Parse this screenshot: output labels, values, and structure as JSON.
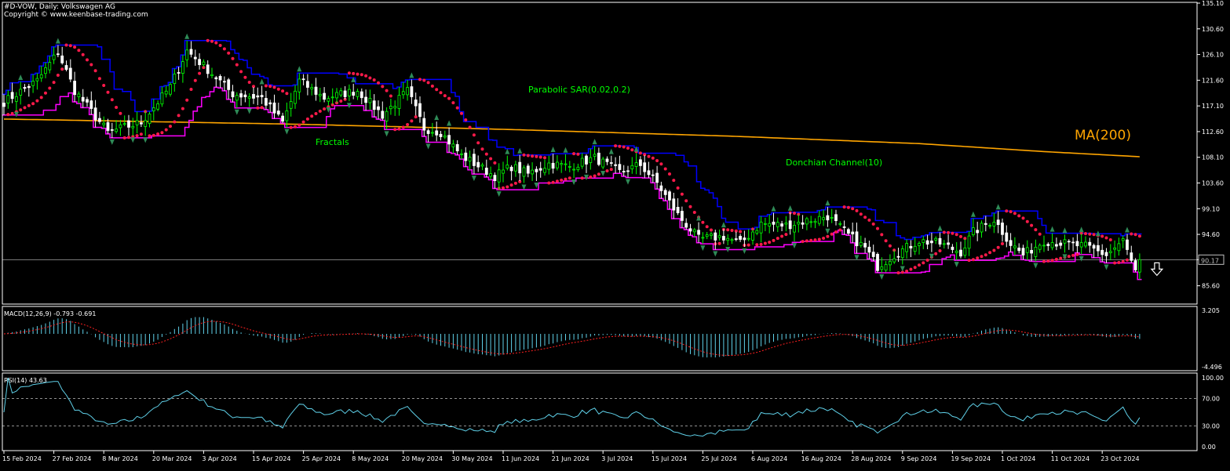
{
  "header": {
    "symbol_line": "#D-VOW, Daily:  Volkswagen AG",
    "copyright": "Copyright © www.keenbase-trading.com"
  },
  "colors": {
    "background": "#000000",
    "bull": "#00ff00",
    "bear": "#ffffff",
    "donchian_upper": "#0000ff",
    "donchian_lower": "#ff00ff",
    "sar": "#ff1a4a",
    "ma": "#ffa500",
    "fractal": "#2e8b57",
    "macd_hist": "#5fd0e8",
    "macd_signal": "#ff2020",
    "rsi": "#5fd0e8",
    "axis": "#ffffff"
  },
  "annotations": {
    "sar_label": "Parabolic SAR(0.02,0.2)",
    "fractals_label": "Fractals",
    "donchian_label": "Donchian Channel(10)",
    "ma_label": "MA(200)"
  },
  "chart_data": [
    {
      "type": "candlestick",
      "title": "#D-VOW, Daily:  Volkswagen AG",
      "ylim": [
        83.08,
        135.1
      ],
      "yticks": [
        "135.10",
        "130.60",
        "126.10",
        "121.60",
        "117.10",
        "112.60",
        "108.10",
        "103.60",
        "99.10",
        "94.60",
        "90.17",
        "85.60"
      ],
      "current_price": "90.17",
      "direction_signal": "down-arrow",
      "dates": [
        "15 Feb 2024",
        "27 Feb 2024",
        "8 Mar 2024",
        "20 Mar 2024",
        "3 Apr 2024",
        "15 Apr 2024",
        "25 Apr 2024",
        "8 May 2024",
        "20 May 2024",
        "30 May 2024",
        "11 Jun 2024",
        "21 Jun 2024",
        "3 Jul 2024",
        "15 Jul 2024",
        "25 Jul 2024",
        "6 Aug 2024",
        "16 Aug 2024",
        "28 Aug 2024",
        "9 Sep 2024",
        "19 Sep 2024",
        "1 Oct 2024",
        "11 Oct 2024",
        "23 Oct 2024"
      ],
      "close_keys": [
        [
          0,
          117.8
        ],
        [
          8,
          121.5
        ],
        [
          13,
          126.5
        ],
        [
          17,
          119.8
        ],
        [
          25,
          112.5
        ],
        [
          33,
          114.2
        ],
        [
          40,
          120.5
        ],
        [
          44,
          126.8
        ],
        [
          50,
          122.8
        ],
        [
          55,
          119.2
        ],
        [
          62,
          118.5
        ],
        [
          67,
          114.2
        ],
        [
          71,
          121.5
        ],
        [
          77,
          118.5
        ],
        [
          85,
          119.8
        ],
        [
          91,
          115.5
        ],
        [
          97,
          119.7
        ],
        [
          101,
          113.2
        ],
        [
          105,
          112.5
        ],
        [
          110,
          108.4
        ],
        [
          118,
          104.8
        ],
        [
          122,
          106.5
        ],
        [
          126,
          105.2
        ],
        [
          131,
          107.0
        ],
        [
          136,
          106.5
        ],
        [
          142,
          108.0
        ],
        [
          148,
          105.5
        ],
        [
          153,
          106.8
        ],
        [
          157,
          103.6
        ],
        [
          162,
          98.0
        ],
        [
          167,
          93.8
        ],
        [
          173,
          94.2
        ],
        [
          177,
          93.0
        ],
        [
          182,
          96.5
        ],
        [
          188,
          96.2
        ],
        [
          193,
          97.0
        ],
        [
          198,
          97.8
        ],
        [
          203,
          94.5
        ],
        [
          207,
          92.2
        ],
        [
          210,
          89.0
        ],
        [
          215,
          91.5
        ],
        [
          220,
          93.5
        ],
        [
          225,
          93.0
        ],
        [
          230,
          91.5
        ],
        [
          233,
          95.0
        ],
        [
          238,
          97.2
        ],
        [
          242,
          93.0
        ],
        [
          245,
          91.0
        ],
        [
          250,
          93.5
        ],
        [
          255,
          93.0
        ],
        [
          260,
          92.5
        ],
        [
          265,
          91.0
        ],
        [
          269,
          93.5
        ],
        [
          272,
          88.0
        ],
        [
          273,
          90.17
        ]
      ],
      "indicators": {
        "ma200_keys": [
          [
            0,
            114.8
          ],
          [
            70,
            113.9
          ],
          [
            120,
            113.0
          ],
          [
            175,
            111.8
          ],
          [
            220,
            110.5
          ],
          [
            250,
            109.1
          ],
          [
            273,
            108.2
          ]
        ],
        "donchian_period": 10,
        "sar_params": [
          0.02,
          0.2
        ]
      }
    },
    {
      "type": "histogram",
      "title": "MACD(12,26,9) -0.793 -0.691",
      "ylim": [
        -4.496,
        3.205
      ],
      "yticks": [
        "3.205",
        "-4.496"
      ]
    },
    {
      "type": "line",
      "title": "RSI(14) 43.63",
      "ylim": [
        0,
        100
      ],
      "yticks": [
        "100.00",
        "70.00",
        "30.00",
        "0.00"
      ],
      "levels": [
        70,
        30
      ]
    }
  ]
}
